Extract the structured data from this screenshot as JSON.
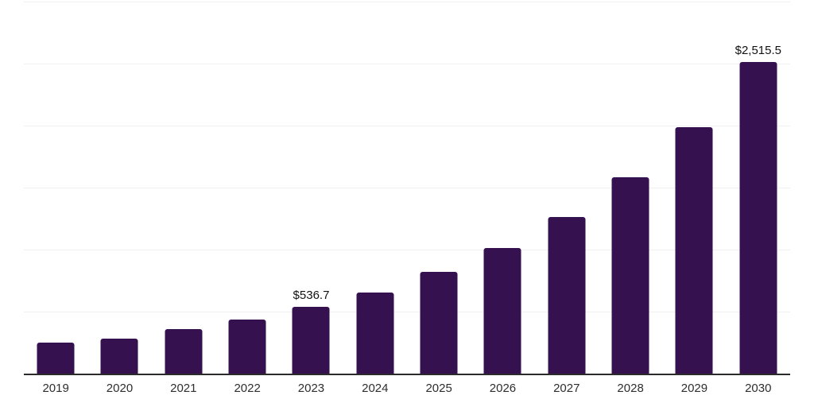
{
  "chart_data": {
    "type": "bar",
    "title": "",
    "xlabel": "",
    "ylabel": "",
    "categories": [
      "2019",
      "2020",
      "2021",
      "2022",
      "2023",
      "2024",
      "2025",
      "2026",
      "2027",
      "2028",
      "2029",
      "2030"
    ],
    "values": [
      249,
      281,
      357,
      434,
      536.7,
      655,
      818,
      1016,
      1263,
      1584,
      1990,
      2515.5
    ],
    "data_labels": {
      "4": "$536.7",
      "11": "$2,515.5"
    },
    "ylim": [
      0,
      3000
    ],
    "grid_step": 500,
    "grid": true,
    "legend": false,
    "y_axis_labels_visible": false,
    "colors": {
      "bar": "#35124f",
      "grid": "#f0f0f0",
      "axis": "#2b2b2b",
      "value_label": "#111111",
      "tick_label": "#2e2e2e",
      "background": "#ffffff"
    }
  }
}
